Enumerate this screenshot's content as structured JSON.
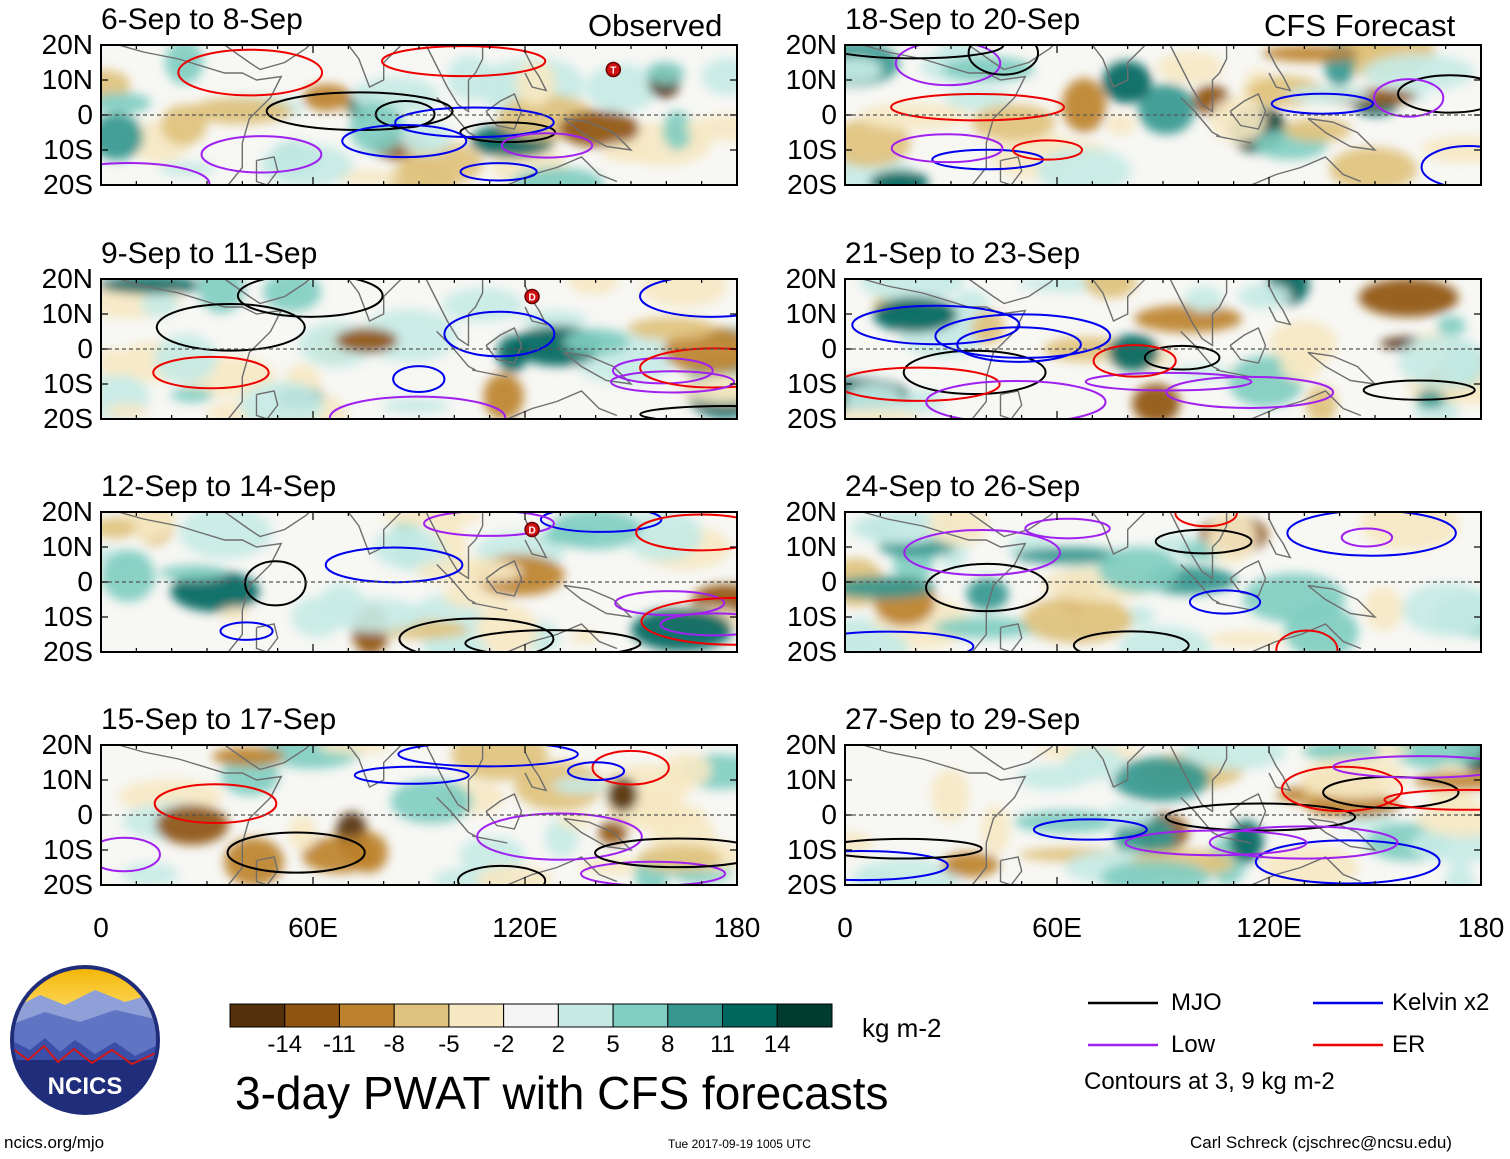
{
  "chart_data": {
    "type": "heatmap",
    "title": "3-day PWAT with CFS forecasts",
    "units": "kg m-2",
    "x_ticks": [
      "0",
      "60E",
      "120E",
      "180"
    ],
    "y_ticks": [
      "20N",
      "10N",
      "0",
      "10S",
      "20S"
    ],
    "xlim": [
      0,
      180
    ],
    "ylim": [
      -20,
      20
    ],
    "section_labels": {
      "observed": "Observed",
      "forecast": "CFS Forecast"
    },
    "panels": [
      {
        "label": "6-Sep to 8-Sep",
        "type": "observed",
        "storm": "T",
        "storm_lon": 145,
        "storm_lat": 13
      },
      {
        "label": "9-Sep to 11-Sep",
        "type": "observed",
        "storm": "D",
        "storm_lon": 122,
        "storm_lat": 15
      },
      {
        "label": "12-Sep to 14-Sep",
        "type": "observed",
        "storm": "D",
        "storm_lon": 122,
        "storm_lat": 15
      },
      {
        "label": "15-Sep to 17-Sep",
        "type": "observed"
      },
      {
        "label": "18-Sep to 20-Sep",
        "type": "forecast"
      },
      {
        "label": "21-Sep to 23-Sep",
        "type": "forecast"
      },
      {
        "label": "24-Sep to 26-Sep",
        "type": "forecast"
      },
      {
        "label": "27-Sep to 29-Sep",
        "type": "forecast"
      }
    ],
    "colorbar": {
      "ticks": [
        "-14",
        "-11",
        "-8",
        "-5",
        "-2",
        "2",
        "5",
        "8",
        "11",
        "14"
      ],
      "colors": [
        "#54310a",
        "#8f5412",
        "#bd822c",
        "#dfc27d",
        "#f6e8c3",
        "#f5f5f5",
        "#c7eae5",
        "#80cdc1",
        "#35978f",
        "#01665e",
        "#003c30"
      ]
    },
    "legend": [
      {
        "name": "MJO",
        "color": "#000000"
      },
      {
        "name": "Kelvin x2",
        "color": "#0000ee"
      },
      {
        "name": "Low",
        "color": "#a020f0"
      },
      {
        "name": "ER",
        "color": "#ee0000"
      }
    ],
    "contour_note": "Contours at 3, 9 kg m-2"
  },
  "footer": {
    "logo_text": "NCICS",
    "url": "ncics.org/mjo",
    "timestamp": "Tue 2017-09-19 1005 UTC",
    "credit": "Carl Schreck (cjschrec@ncsu.edu)"
  }
}
